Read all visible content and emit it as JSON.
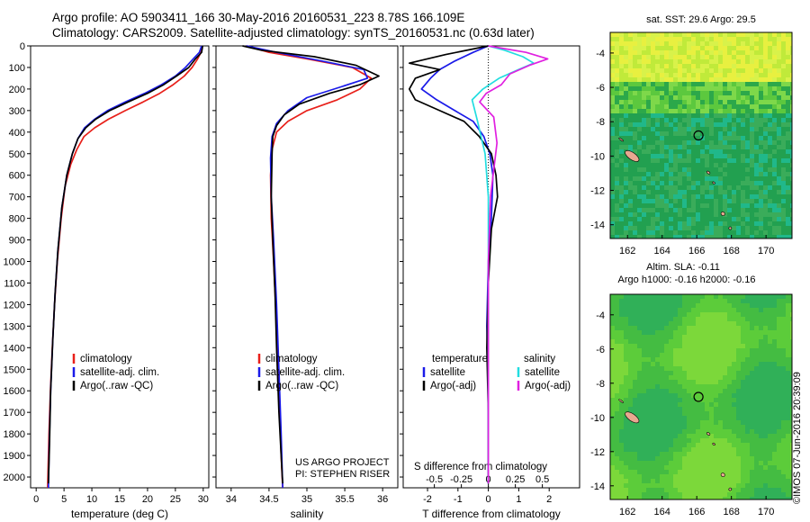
{
  "title": {
    "line1": "Argo profile: AO 5903411_166 30-May-2016 20160531_223 8.78S 166.109E",
    "line2": "Climatology: CARS2009. Satellite-adjusted climatology: synTS_20160531.nc (0.63d later)"
  },
  "stamp": "©IMOS 07-Jun-2016 20:39:09",
  "colors": {
    "climatology": "#e8201a",
    "satellite": "#1a1ae8",
    "argo": "#000000",
    "sat_salinity": "#22dde0",
    "argo_salinity": "#e020e0"
  },
  "chart_data": [
    {
      "type": "line",
      "xlabel": "temperature (deg C)",
      "ylim": [
        2050,
        0
      ],
      "xlim": [
        -1,
        31
      ],
      "xticks": [
        0,
        5,
        10,
        15,
        20,
        25,
        30
      ],
      "xticklabels": [
        "0",
        "5",
        "10",
        "15",
        "20",
        "25",
        "30"
      ],
      "yticks": [
        0,
        100,
        200,
        300,
        400,
        500,
        600,
        700,
        800,
        900,
        1000,
        1100,
        1200,
        1300,
        1400,
        1500,
        1600,
        1700,
        1800,
        1900,
        2000
      ],
      "yticklabels": [
        "0",
        "100",
        "200",
        "300",
        "400",
        "500",
        "600",
        "700",
        "800",
        "900",
        "1000",
        "1100",
        "1200",
        "1300",
        "1400",
        "1500",
        "1600",
        "1700",
        "1800",
        "1900",
        "2000"
      ],
      "legend": [
        "climatology",
        "satellite-adj. clim.",
        "Argo(..raw -QC)"
      ],
      "series": [
        {
          "name": "climatology",
          "color": "#e8201a",
          "x": [
            29.8,
            29.6,
            29.0,
            28.0,
            26.6,
            24.6,
            22.2,
            19.2,
            16.0,
            13.0,
            10.5,
            8.6,
            7.3,
            6.2,
            5.2,
            4.5,
            3.8,
            3.3,
            2.9,
            2.55,
            2.3,
            2.15,
            2.05
          ],
          "y": [
            0,
            30,
            60,
            100,
            140,
            180,
            220,
            260,
            300,
            340,
            380,
            420,
            480,
            550,
            650,
            800,
            1000,
            1200,
            1400,
            1600,
            1800,
            1950,
            2050
          ]
        },
        {
          "name": "satellite-adj. clim.",
          "color": "#1a1ae8",
          "x": [
            29.7,
            29.3,
            28.2,
            26.8,
            25.0,
            22.5,
            19.5,
            16.0,
            12.8,
            10.5,
            8.7,
            7.5,
            6.5,
            5.5,
            4.6,
            3.9,
            3.4,
            3.0,
            2.6,
            2.35,
            2.2
          ],
          "y": [
            0,
            30,
            60,
            100,
            140,
            180,
            220,
            260,
            300,
            340,
            380,
            430,
            500,
            600,
            750,
            950,
            1150,
            1350,
            1600,
            1850,
            2050
          ]
        },
        {
          "name": "Argo(..raw -QC)",
          "color": "#000000",
          "x": [
            29.9,
            29.7,
            28.6,
            27.4,
            25.2,
            22.9,
            20.0,
            16.5,
            13.2,
            10.7,
            8.9,
            7.5,
            6.5,
            5.5,
            4.6,
            3.9,
            3.4,
            3.0,
            2.6,
            2.4,
            2.2
          ],
          "y": [
            0,
            30,
            60,
            100,
            140,
            180,
            220,
            260,
            300,
            340,
            380,
            430,
            500,
            600,
            750,
            950,
            1150,
            1350,
            1600,
            1850,
            2030
          ]
        }
      ]
    },
    {
      "type": "line",
      "xlabel": "salinity",
      "ylim": [
        2050,
        0
      ],
      "xlim": [
        33.8,
        36.2
      ],
      "xticks": [
        34,
        34.5,
        35,
        35.5,
        36
      ],
      "xticklabels": [
        "34",
        "34.5",
        "35",
        "35.5",
        "36"
      ],
      "legend": [
        "climatology",
        "satellite-adj. clim.",
        "Argo(..raw -QC)"
      ],
      "annotation": [
        "US ARGO PROJECT",
        "PI: STEPHEN RISER"
      ],
      "series": [
        {
          "name": "climatology",
          "color": "#e8201a",
          "x": [
            34.2,
            34.5,
            35.0,
            35.6,
            35.85,
            35.7,
            35.4,
            35.0,
            34.75,
            34.6,
            34.54,
            34.52,
            34.53,
            34.56,
            34.6,
            34.63,
            34.66,
            34.68
          ],
          "y": [
            0,
            30,
            60,
            100,
            150,
            200,
            250,
            300,
            350,
            400,
            480,
            600,
            800,
            1000,
            1300,
            1600,
            1900,
            2050
          ]
        },
        {
          "name": "satellite-adj. clim.",
          "color": "#1a1ae8",
          "x": [
            34.2,
            34.6,
            35.2,
            35.75,
            35.8,
            35.45,
            35.0,
            34.75,
            34.6,
            34.54,
            34.52,
            34.53,
            34.56,
            34.6,
            34.63,
            34.66,
            34.68
          ],
          "y": [
            0,
            30,
            70,
            110,
            150,
            190,
            240,
            300,
            360,
            420,
            520,
            700,
            900,
            1200,
            1500,
            1800,
            2050
          ]
        },
        {
          "name": "Argo(..raw -QC)",
          "color": "#000000",
          "x": [
            34.15,
            34.4,
            35.1,
            35.65,
            35.95,
            35.7,
            35.3,
            34.9,
            34.7,
            34.6,
            34.55,
            34.54,
            34.53,
            34.55,
            34.58,
            34.6,
            34.63,
            34.66,
            34.68
          ],
          "y": [
            0,
            20,
            50,
            90,
            140,
            180,
            220,
            270,
            320,
            370,
            420,
            500,
            700,
            900,
            1150,
            1400,
            1700,
            1900,
            2030
          ]
        }
      ]
    },
    {
      "type": "line",
      "xlabel": "T difference from climatology",
      "xlabel_top": "S difference from climatology",
      "ylim": [
        2050,
        0
      ],
      "xlim": [
        -2.8,
        3.0
      ],
      "xticks": [
        -2,
        -1,
        0,
        1,
        2
      ],
      "xticklabels": [
        "-2",
        "-1",
        "0",
        "1",
        "2"
      ],
      "sticks": [
        -0.5,
        -0.25,
        0,
        0.25,
        0.5
      ],
      "sticklabels": [
        "-0.5",
        "-0.25",
        "0",
        "0.25",
        "0.5"
      ],
      "legend": {
        "temperature": "temperature",
        "salinity": "salinity",
        "t_sat": "satellite",
        "t_argo": "Argo(-adj)",
        "s_sat": "satellite",
        "s_argo": "Argo(-adj)"
      },
      "series": [
        {
          "name": "satellite",
          "quantity": "temperature",
          "color": "#1a1ae8",
          "x": [
            0.0,
            -0.5,
            -1.1,
            -1.6,
            -1.9,
            -2.2,
            -1.7,
            -1.1,
            -0.5,
            -0.15,
            0.05,
            0.15,
            0.1,
            0.0,
            -0.05,
            0.0,
            0.0,
            0.0
          ],
          "y": [
            0,
            30,
            70,
            110,
            150,
            200,
            250,
            300,
            350,
            420,
            500,
            600,
            800,
            1000,
            1300,
            1600,
            1900,
            2030
          ]
        },
        {
          "name": "Argo(-adj)",
          "quantity": "temperature",
          "color": "#000000",
          "x": [
            0.0,
            -1.4,
            -2.6,
            -1.6,
            -2.4,
            -2.6,
            -2.4,
            -1.6,
            -0.8,
            -0.3,
            0.1,
            0.25,
            0.3,
            0.1,
            0.0,
            -0.05,
            0.0,
            0.0
          ],
          "y": [
            0,
            40,
            80,
            110,
            150,
            200,
            250,
            300,
            350,
            420,
            500,
            600,
            700,
            850,
            1100,
            1400,
            1700,
            2030
          ]
        },
        {
          "name": "satellite",
          "quantity": "salinity",
          "color": "#22dde0",
          "x": [
            0.0,
            0.15,
            0.32,
            0.42,
            0.28,
            0.1,
            -0.05,
            -0.15,
            -0.1,
            -0.03,
            0.0,
            0.0,
            0.0,
            0.0
          ],
          "y": [
            0,
            20,
            50,
            80,
            110,
            150,
            200,
            250,
            350,
            500,
            700,
            1000,
            1500,
            2030
          ]
        },
        {
          "name": "Argo(-adj)",
          "quantity": "salinity",
          "color": "#e020e0",
          "x": [
            0.0,
            0.35,
            0.55,
            0.38,
            0.2,
            0.12,
            -0.02,
            -0.08,
            0.05,
            0.08,
            0.02,
            0.0,
            0.0
          ],
          "y": [
            0,
            30,
            60,
            90,
            130,
            180,
            220,
            260,
            330,
            450,
            700,
            1000,
            2030
          ]
        }
      ]
    }
  ],
  "maps": [
    {
      "title": "sat. SST: 29.6 Argo: 29.5",
      "xticks": [
        "162",
        "164",
        "166",
        "168",
        "170"
      ],
      "yticks": [
        "-4",
        "-6",
        "-8",
        "-10",
        "-12",
        "-14"
      ],
      "xlim": [
        161,
        171.5
      ],
      "ylim": [
        -14.8,
        -2.8
      ],
      "field": "sst",
      "argo_position": {
        "lon": 166.1,
        "lat": -8.8
      }
    },
    {
      "title_line1": "Altim. SLA: -0.11",
      "title_line2": "Argo h1000: -0.16 h2000: -0.16",
      "xticks": [
        "162",
        "164",
        "166",
        "168",
        "170"
      ],
      "yticks": [
        "-4",
        "-6",
        "-8",
        "-10",
        "-12",
        "-14"
      ],
      "xlim": [
        161,
        171.5
      ],
      "ylim": [
        -14.8,
        -2.8
      ],
      "field": "sla",
      "argo_position": {
        "lon": 166.1,
        "lat": -8.8
      }
    }
  ]
}
